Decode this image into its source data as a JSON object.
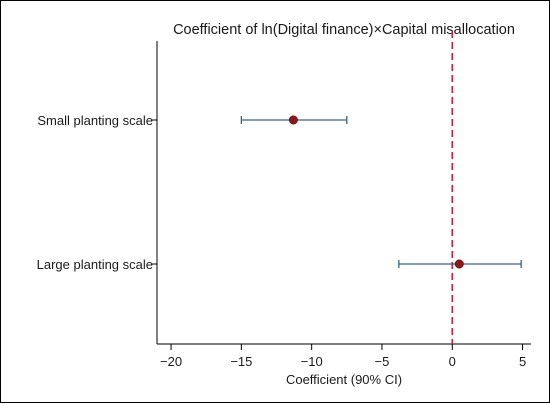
{
  "chart_data": {
    "type": "scatter",
    "subtype": "coefficient-plot",
    "title": "Coefficient of ln(Digital finance)×Capital misallocation",
    "xlabel": "Coefficient (90% CI)",
    "ylabel": "",
    "xlim": [
      -21,
      5.6
    ],
    "x_ticks": [
      -20,
      -15,
      -10,
      -5,
      0,
      5
    ],
    "x_tick_labels": [
      "−20",
      "−15",
      "−10",
      "−5",
      "0",
      "5"
    ],
    "reference_line": {
      "x": 0,
      "style": "dashed",
      "color": "#c81e3c"
    },
    "categories": [
      "Small planting scale",
      "Large planting scale"
    ],
    "series": [
      {
        "points": [
          {
            "category": "Small planting scale",
            "estimate": -11.3,
            "ci_low": -15.0,
            "ci_high": -7.5
          },
          {
            "category": "Large planting scale",
            "estimate": 0.5,
            "ci_low": -3.8,
            "ci_high": 4.9
          }
        ]
      }
    ],
    "colors": {
      "point": "#8b1a1a",
      "ci": "#3e5f86",
      "axis": "#000000"
    },
    "grid": false,
    "legend": "none"
  }
}
